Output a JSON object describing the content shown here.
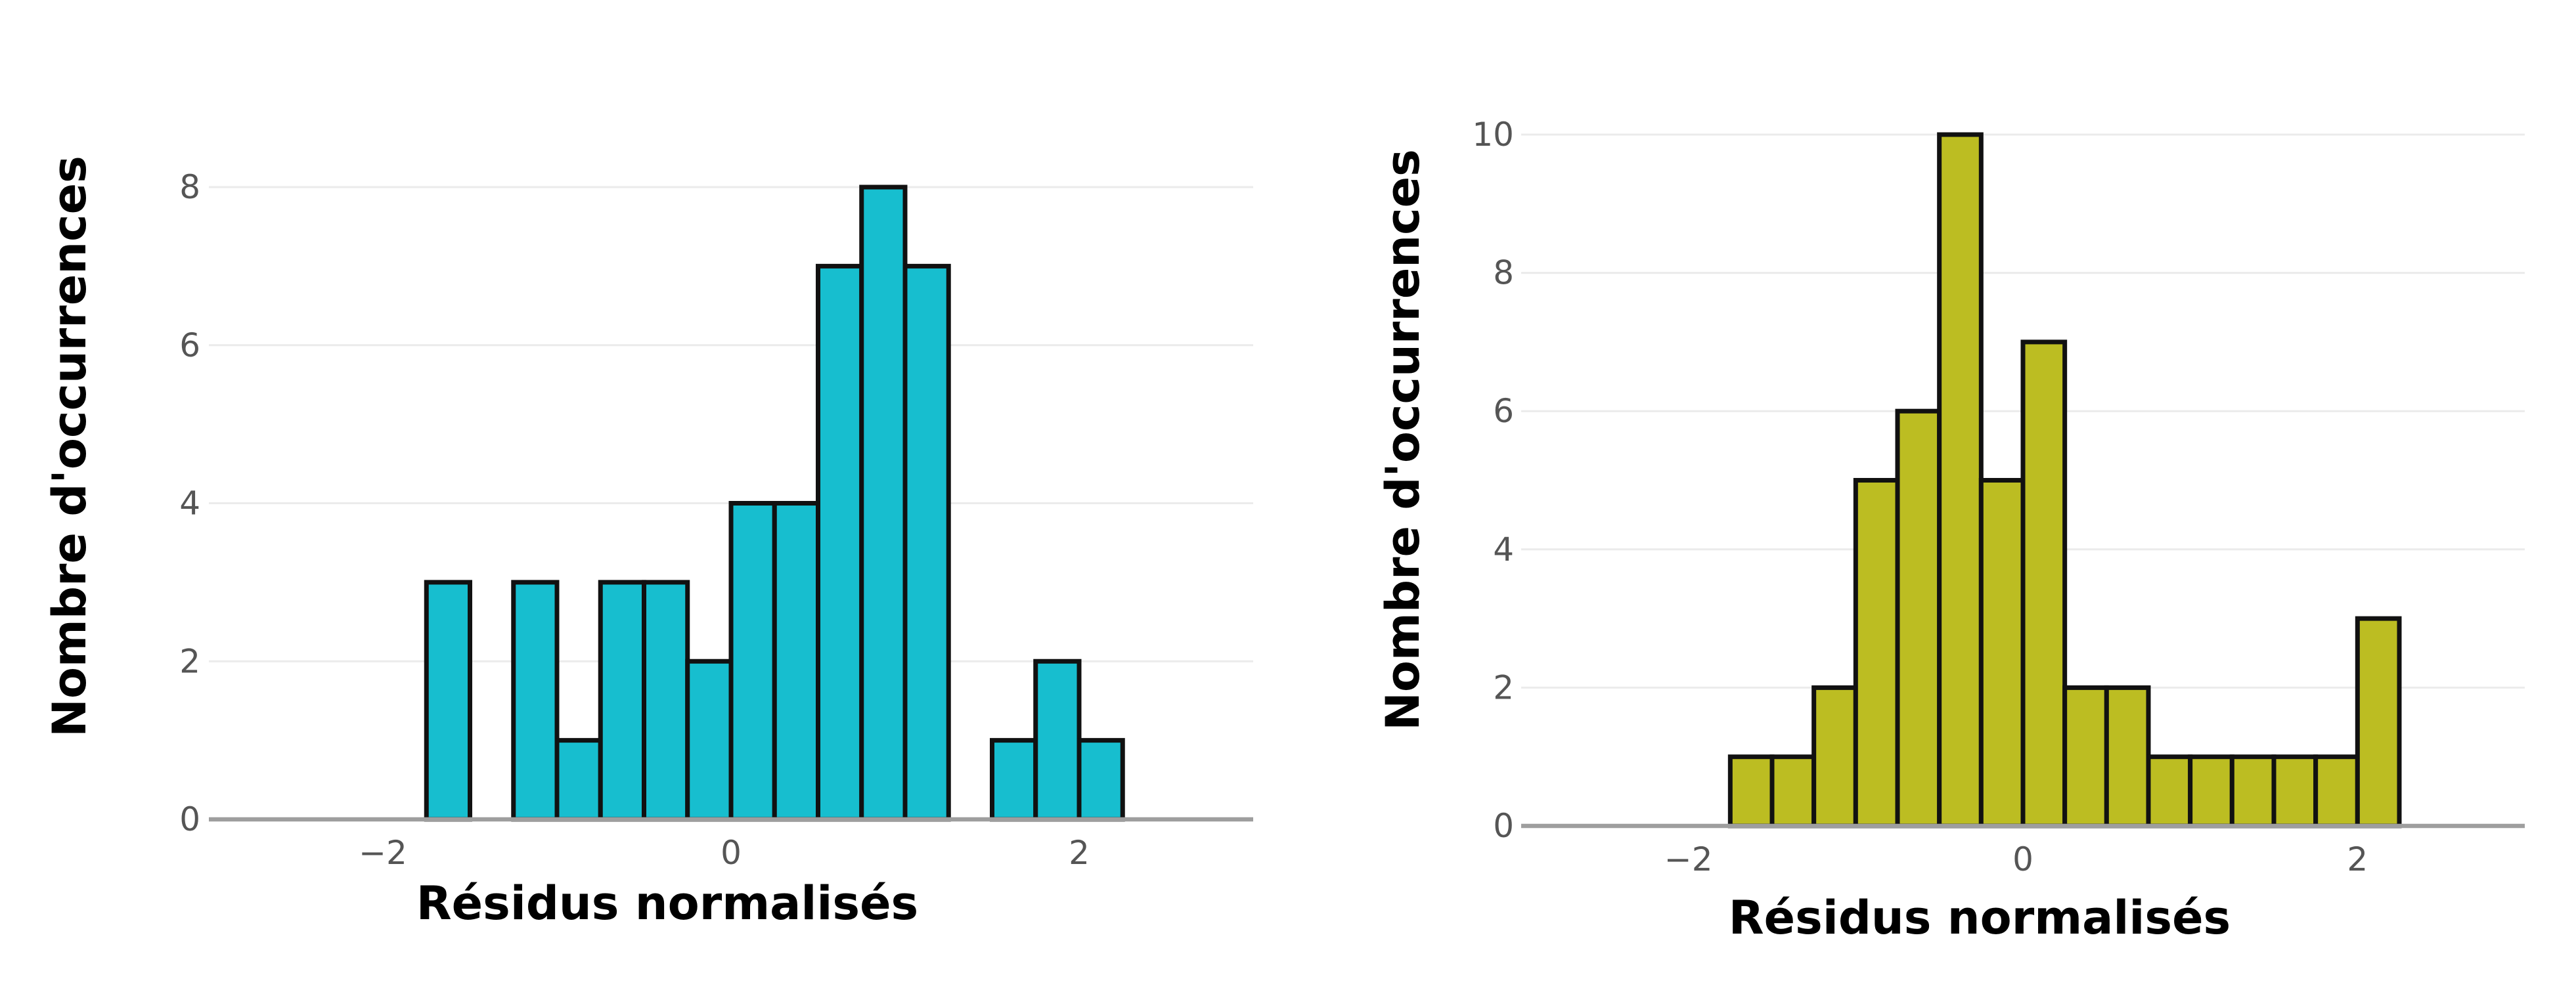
{
  "chart_data": [
    {
      "type": "bar",
      "subtype": "histogram",
      "xlabel": "Résidus normalisés",
      "ylabel": "Nombre d'occurrences",
      "xlim": [
        -3,
        3
      ],
      "ylim": [
        0,
        8
      ],
      "x_ticks": [
        -2,
        0,
        2
      ],
      "x_tick_labels": [
        "−2",
        "0",
        "2"
      ],
      "y_ticks": [
        0,
        2,
        4,
        6,
        8
      ],
      "y_tick_labels": [
        "0",
        "2",
        "4",
        "6",
        "8"
      ],
      "grid": true,
      "bar_color": "#17becf",
      "bin_width": 0.25,
      "bins": [
        {
          "x0": -1.75,
          "x1": -1.5,
          "count": 3
        },
        {
          "x0": -1.25,
          "x1": -1.0,
          "count": 3
        },
        {
          "x0": -1.0,
          "x1": -0.75,
          "count": 1
        },
        {
          "x0": -0.75,
          "x1": -0.5,
          "count": 3
        },
        {
          "x0": -0.5,
          "x1": -0.25,
          "count": 3
        },
        {
          "x0": -0.25,
          "x1": 0.0,
          "count": 2
        },
        {
          "x0": 0.0,
          "x1": 0.25,
          "count": 4
        },
        {
          "x0": 0.25,
          "x1": 0.5,
          "count": 4
        },
        {
          "x0": 0.5,
          "x1": 0.75,
          "count": 7
        },
        {
          "x0": 0.75,
          "x1": 1.0,
          "count": 8
        },
        {
          "x0": 1.0,
          "x1": 1.25,
          "count": 7
        },
        {
          "x0": 1.5,
          "x1": 1.75,
          "count": 1
        },
        {
          "x0": 1.75,
          "x1": 2.0,
          "count": 2
        },
        {
          "x0": 2.0,
          "x1": 2.25,
          "count": 1
        }
      ]
    },
    {
      "type": "bar",
      "subtype": "histogram",
      "xlabel": "Résidus normalisés",
      "ylabel": "Nombre d'occurrences",
      "xlim": [
        -3,
        3
      ],
      "ylim": [
        0,
        10
      ],
      "x_ticks": [
        -2,
        0,
        2
      ],
      "x_tick_labels": [
        "−2",
        "0",
        "2"
      ],
      "y_ticks": [
        0,
        2,
        4,
        6,
        8,
        10
      ],
      "y_tick_labels": [
        "0",
        "2",
        "4",
        "6",
        "8",
        "10"
      ],
      "grid": true,
      "bar_color": "#bcbd22",
      "bin_width": 0.25,
      "bins": [
        {
          "x0": -1.75,
          "x1": -1.5,
          "count": 1
        },
        {
          "x0": -1.5,
          "x1": -1.25,
          "count": 1
        },
        {
          "x0": -1.25,
          "x1": -1.0,
          "count": 2
        },
        {
          "x0": -1.0,
          "x1": -0.75,
          "count": 5
        },
        {
          "x0": -0.75,
          "x1": -0.5,
          "count": 6
        },
        {
          "x0": -0.5,
          "x1": -0.25,
          "count": 10
        },
        {
          "x0": -0.25,
          "x1": 0.0,
          "count": 5
        },
        {
          "x0": 0.0,
          "x1": 0.25,
          "count": 7
        },
        {
          "x0": 0.25,
          "x1": 0.5,
          "count": 2
        },
        {
          "x0": 0.5,
          "x1": 0.75,
          "count": 2
        },
        {
          "x0": 0.75,
          "x1": 1.0,
          "count": 1
        },
        {
          "x0": 1.0,
          "x1": 1.25,
          "count": 1
        },
        {
          "x0": 1.25,
          "x1": 1.5,
          "count": 1
        },
        {
          "x0": 1.5,
          "x1": 1.75,
          "count": 1
        },
        {
          "x0": 1.75,
          "x1": 2.0,
          "count": 1
        },
        {
          "x0": 2.0,
          "x1": 2.25,
          "count": 3
        }
      ]
    }
  ]
}
